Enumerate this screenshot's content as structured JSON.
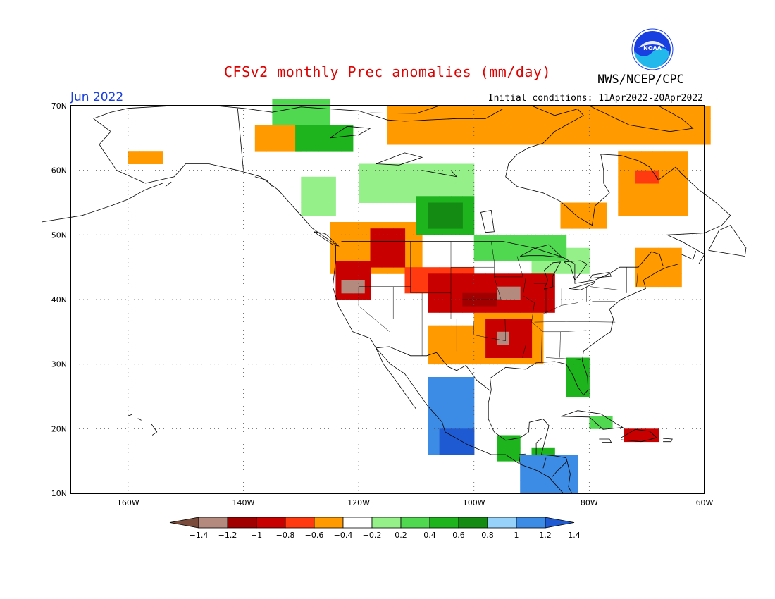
{
  "header": {
    "title": "CFSv2 monthly Prec anomalies (mm/day)",
    "agency": "NWS/NCEP/CPC",
    "logo_text": "NOAA",
    "month": "Jun 2022",
    "initial_conditions": "Initial conditions: 11Apr2022-20Apr2022"
  },
  "axes": {
    "lat_labels": [
      "70N",
      "60N",
      "50N",
      "40N",
      "30N",
      "20N",
      "10N"
    ],
    "lon_labels": [
      "160W",
      "140W",
      "120W",
      "100W",
      "80W",
      "60W"
    ],
    "lat_range": [
      10,
      70
    ],
    "lon_range": [
      -170,
      -60
    ],
    "grid": "dotted"
  },
  "colorbar": {
    "colors": [
      "#7a4a3a",
      "#b48a7e",
      "#a00000",
      "#c80000",
      "#ff3a10",
      "#ff9a00",
      "#ffffff",
      "#96f08a",
      "#50d850",
      "#1eb41e",
      "#148c14",
      "#96d2fa",
      "#3c8ce6",
      "#1e5ad2"
    ],
    "tick_labels": [
      "-1.4",
      "-1.2",
      "-1",
      "-0.8",
      "-0.6",
      "-0.4",
      "-0.2",
      "0.2",
      "0.4",
      "0.6",
      "0.8",
      "1",
      "1.2",
      "1.4"
    ]
  },
  "chart_data": {
    "type": "heatmap",
    "title": "CFSv2 monthly Prec anomalies (mm/day)",
    "cell_size_deg": 2,
    "anomaly_regions": [
      {
        "lon": [
          -135,
          -125
        ],
        "lat": [
          67,
          70
        ],
        "value": 0.4
      },
      {
        "lon": [
          -131,
          -122
        ],
        "lat": [
          63,
          66
        ],
        "value": 0.6
      },
      {
        "lon": [
          -160,
          -155
        ],
        "lat": [
          61,
          63
        ],
        "value": -0.4
      },
      {
        "lon": [
          -138,
          -130
        ],
        "lat": [
          63,
          66
        ],
        "value": -0.4
      },
      {
        "lon": [
          -115,
          -60
        ],
        "lat": [
          64,
          70
        ],
        "value": -0.4
      },
      {
        "lon": [
          -75,
          -64
        ],
        "lat": [
          53,
          62
        ],
        "value": -0.4
      },
      {
        "lon": [
          -72,
          -69
        ],
        "lat": [
          58,
          60
        ],
        "value": -0.6
      },
      {
        "lon": [
          -85,
          -78
        ],
        "lat": [
          51,
          54
        ],
        "value": -0.4
      },
      {
        "lon": [
          -120,
          -100
        ],
        "lat": [
          55,
          61
        ],
        "value": 0.2
      },
      {
        "lon": [
          -110,
          -100
        ],
        "lat": [
          50,
          56
        ],
        "value": 0.6
      },
      {
        "lon": [
          -108,
          -103
        ],
        "lat": [
          51,
          54
        ],
        "value": 0.8
      },
      {
        "lon": [
          -100,
          -85
        ],
        "lat": [
          46,
          50
        ],
        "value": 0.4
      },
      {
        "lon": [
          -130,
          -125
        ],
        "lat": [
          53,
          58
        ],
        "value": 0.2
      },
      {
        "lon": [
          -125,
          -110
        ],
        "lat": [
          44,
          51
        ],
        "value": -0.4
      },
      {
        "lon": [
          -118,
          -112
        ],
        "lat": [
          45,
          51
        ],
        "value": -0.8
      },
      {
        "lon": [
          -124,
          -118
        ],
        "lat": [
          40,
          45
        ],
        "value": -0.8
      },
      {
        "lon": [
          -123,
          -120
        ],
        "lat": [
          41,
          43
        ],
        "value": -1.2
      },
      {
        "lon": [
          -112,
          -100
        ],
        "lat": [
          41,
          45
        ],
        "value": -0.6
      },
      {
        "lon": [
          -108,
          -86
        ],
        "lat": [
          38,
          43
        ],
        "value": -0.8
      },
      {
        "lon": [
          -102,
          -96
        ],
        "lat": [
          39,
          41
        ],
        "value": -1.0
      },
      {
        "lon": [
          -96,
          -93
        ],
        "lat": [
          40,
          42
        ],
        "value": -1.2
      },
      {
        "lon": [
          -100,
          -88
        ],
        "lat": [
          30,
          37
        ],
        "value": -0.4
      },
      {
        "lon": [
          -98,
          -90
        ],
        "lat": [
          31,
          36
        ],
        "value": -0.8
      },
      {
        "lon": [
          -96,
          -94
        ],
        "lat": [
          33,
          35
        ],
        "value": -1.2
      },
      {
        "lon": [
          -108,
          -100
        ],
        "lat": [
          30,
          35
        ],
        "value": -0.4
      },
      {
        "lon": [
          -84,
          -80
        ],
        "lat": [
          25,
          31
        ],
        "value": 0.6
      },
      {
        "lon": [
          -108,
          -100
        ],
        "lat": [
          16,
          28
        ],
        "value": 1.2
      },
      {
        "lon": [
          -106,
          -100
        ],
        "lat": [
          16,
          20
        ],
        "value": 1.4
      },
      {
        "lon": [
          -92,
          -83
        ],
        "lat": [
          10,
          16
        ],
        "value": 1.2
      },
      {
        "lon": [
          -90,
          -86
        ],
        "lat": [
          13,
          16
        ],
        "value": 0.6
      },
      {
        "lon": [
          -96,
          -92
        ],
        "lat": [
          15,
          18
        ],
        "value": 0.6
      },
      {
        "lon": [
          -74,
          -68
        ],
        "lat": [
          18,
          20
        ],
        "value": -0.8
      },
      {
        "lon": [
          -80,
          -76
        ],
        "lat": [
          20,
          22
        ],
        "value": 0.4
      },
      {
        "lon": [
          -72,
          -65
        ],
        "lat": [
          42,
          47
        ],
        "value": -0.4
      },
      {
        "lon": [
          -90,
          -80
        ],
        "lat": [
          44,
          48
        ],
        "value": 0.2
      }
    ]
  }
}
